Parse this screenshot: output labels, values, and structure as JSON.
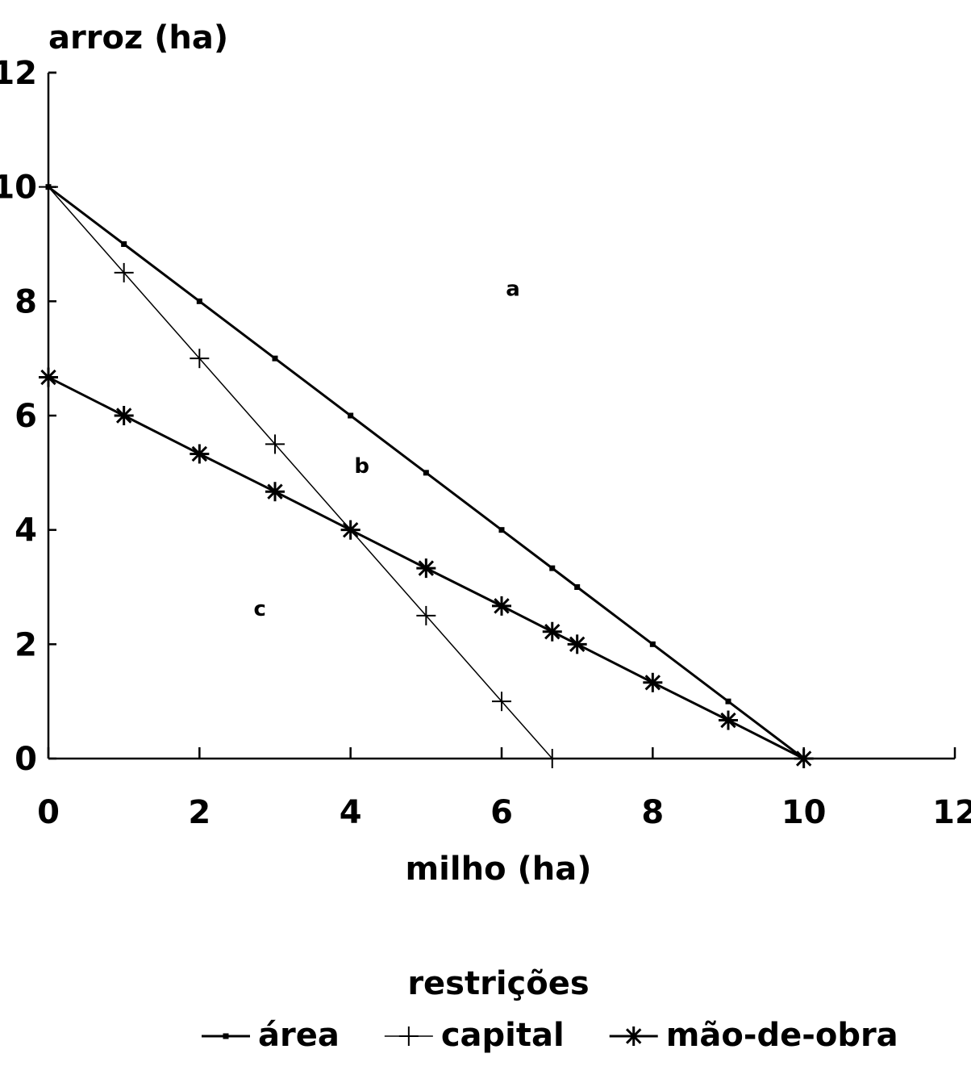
{
  "chart_data": {
    "type": "line",
    "title": "",
    "xlabel": "milho (ha)",
    "ylabel": "arroz (ha)",
    "xlim": [
      0,
      12
    ],
    "ylim": [
      0,
      12
    ],
    "xticks": [
      0,
      2,
      4,
      6,
      8,
      10,
      12
    ],
    "yticks": [
      0,
      2,
      4,
      6,
      8,
      10,
      12
    ],
    "grid": false,
    "legend_title": "restrições",
    "legend_position": "bottom",
    "series": [
      {
        "name": "área",
        "marker": "square",
        "stroke_weight": "heavy",
        "x": [
          0,
          1,
          2,
          3,
          4,
          5,
          6,
          6.67,
          7,
          8,
          9,
          10
        ],
        "y": [
          10,
          9,
          8,
          7,
          6,
          5,
          4,
          3.33,
          3,
          2,
          1,
          0
        ]
      },
      {
        "name": "capital",
        "marker": "plus",
        "stroke_weight": "light",
        "x": [
          0,
          1,
          2,
          3,
          4,
          5,
          6,
          6.67
        ],
        "y": [
          10,
          8.5,
          7,
          5.5,
          4,
          2.5,
          1,
          0
        ]
      },
      {
        "name": "mão-de-obra",
        "marker": "star",
        "stroke_weight": "heavy",
        "x": [
          0,
          1,
          2,
          3,
          4,
          5,
          6,
          6.67,
          7,
          8,
          9,
          10
        ],
        "y": [
          6.67,
          6,
          5.33,
          4.67,
          4,
          3.33,
          2.67,
          2.22,
          2,
          1.33,
          0.67,
          0
        ]
      }
    ],
    "annotations": [
      {
        "text": "a",
        "x": 6.15,
        "y": 8.1
      },
      {
        "text": "b",
        "x": 4.15,
        "y": 5.0
      },
      {
        "text": "c",
        "x": 2.8,
        "y": 2.5
      }
    ]
  }
}
